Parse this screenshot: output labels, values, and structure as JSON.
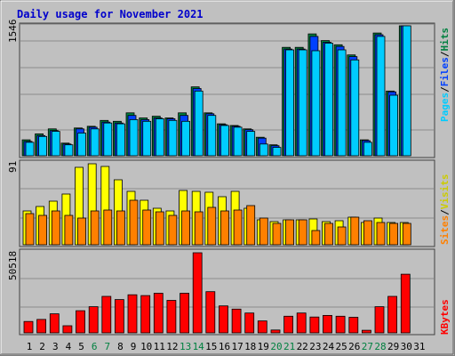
{
  "title": "Daily usage for November 2021",
  "colors": {
    "frame": "#c0c0c0",
    "panel": "#c0c0c0",
    "title": "#0000cc",
    "hits": "#008040",
    "files": "#0040ff",
    "pages": "#00ccff",
    "visits": "#ffff00",
    "sites": "#ff8000",
    "kbytes": "#ff0000",
    "weekend_label": "#008040",
    "weekday_label": "#000000"
  },
  "chart_data": [
    {
      "type": "bar",
      "name": "hits-files-pages",
      "max_label": "1546",
      "legend": [
        "Pages",
        "Files",
        "Hits"
      ],
      "ylim": [
        0,
        1546
      ],
      "categories": [
        "1",
        "2",
        "3",
        "4",
        "5",
        "6",
        "7",
        "8",
        "9",
        "10",
        "11",
        "12",
        "13",
        "14",
        "15",
        "16",
        "17",
        "18",
        "19",
        "20",
        "21",
        "22",
        "23",
        "24",
        "25",
        "26",
        "27",
        "28",
        "29",
        "30",
        "31"
      ],
      "series": [
        {
          "name": "Hits",
          "values": [
            190,
            260,
            320,
            150,
            330,
            350,
            420,
            410,
            510,
            450,
            470,
            450,
            510,
            820,
            510,
            380,
            360,
            320,
            220,
            130,
            1290,
            1290,
            1450,
            1370,
            1320,
            1200,
            190,
            1460,
            770,
            1546,
            0
          ]
        },
        {
          "name": "Files",
          "values": [
            170,
            240,
            300,
            140,
            320,
            340,
            400,
            390,
            480,
            430,
            450,
            440,
            480,
            800,
            500,
            370,
            350,
            310,
            210,
            120,
            1270,
            1270,
            1420,
            1350,
            1300,
            1180,
            180,
            1440,
            760,
            1546,
            0
          ]
        },
        {
          "name": "Pages",
          "values": [
            160,
            230,
            290,
            130,
            270,
            320,
            390,
            380,
            430,
            410,
            440,
            420,
            410,
            770,
            480,
            360,
            340,
            290,
            140,
            100,
            1260,
            1260,
            1250,
            1340,
            1260,
            1140,
            160,
            1420,
            720,
            1546,
            0
          ]
        }
      ]
    },
    {
      "type": "bar",
      "name": "visits-sites",
      "max_label": "91",
      "legend": [
        "Sites",
        "Visits"
      ],
      "ylim": [
        0,
        91
      ],
      "categories": [
        "1",
        "2",
        "3",
        "4",
        "5",
        "6",
        "7",
        "8",
        "9",
        "10",
        "11",
        "12",
        "13",
        "14",
        "15",
        "16",
        "17",
        "18",
        "19",
        "20",
        "21",
        "22",
        "23",
        "24",
        "25",
        "26",
        "27",
        "28",
        "29",
        "30",
        "31"
      ],
      "series": [
        {
          "name": "Visits",
          "values": [
            38,
            43,
            49,
            57,
            87,
            91,
            88,
            73,
            60,
            50,
            41,
            38,
            61,
            60,
            59,
            54,
            60,
            41,
            28,
            26,
            28,
            28,
            29,
            26,
            27,
            31,
            25,
            30,
            25,
            25,
            0
          ]
        },
        {
          "name": "Sites",
          "values": [
            35,
            33,
            38,
            33,
            30,
            38,
            39,
            38,
            50,
            39,
            37,
            33,
            38,
            37,
            42,
            38,
            39,
            44,
            30,
            24,
            28,
            28,
            16,
            24,
            20,
            31,
            27,
            25,
            24,
            24,
            0
          ]
        }
      ]
    },
    {
      "type": "bar",
      "name": "kbytes",
      "max_label": "50518",
      "legend": [
        "KBytes"
      ],
      "ylim": [
        0,
        50518
      ],
      "categories": [
        "1",
        "2",
        "3",
        "4",
        "5",
        "6",
        "7",
        "8",
        "9",
        "10",
        "11",
        "12",
        "13",
        "14",
        "15",
        "16",
        "17",
        "18",
        "19",
        "20",
        "21",
        "22",
        "23",
        "24",
        "25",
        "26",
        "27",
        "28",
        "29",
        "30",
        "31"
      ],
      "series": [
        {
          "name": "KBytes",
          "values": [
            7200,
            8500,
            12000,
            4500,
            14000,
            16500,
            23000,
            21000,
            24000,
            23500,
            25000,
            20500,
            25000,
            50518,
            26000,
            17000,
            15000,
            12500,
            7500,
            1800,
            10500,
            12500,
            10000,
            11000,
            10500,
            9800,
            1600,
            16500,
            23000,
            37000,
            0
          ]
        }
      ]
    }
  ],
  "x_labels": [
    "1",
    "2",
    "3",
    "4",
    "5",
    "6",
    "7",
    "8",
    "9",
    "10",
    "11",
    "12",
    "13",
    "14",
    "15",
    "16",
    "17",
    "18",
    "19",
    "20",
    "21",
    "22",
    "23",
    "24",
    "25",
    "26",
    "27",
    "28",
    "29",
    "30",
    "31"
  ],
  "weekend_days": [
    6,
    7,
    13,
    14,
    20,
    21,
    27,
    28
  ]
}
